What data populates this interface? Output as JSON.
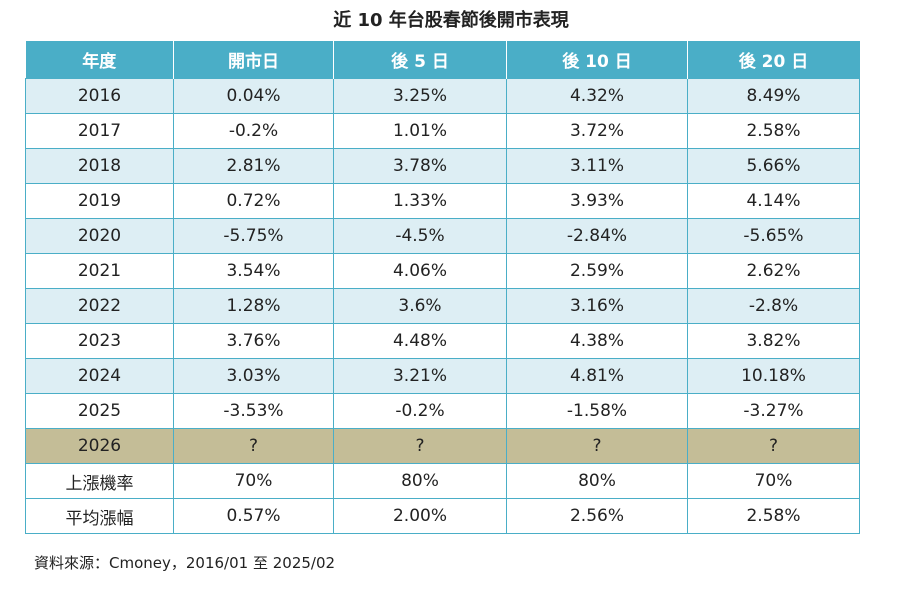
{
  "title": "近 10 年台股春節後開市表現",
  "headers": [
    "年度",
    "開市日",
    "後 5 日",
    "後 10 日",
    "後 20 日"
  ],
  "rows": [
    [
      "2016",
      "0.04%",
      "3.25%",
      "4.32%",
      "8.49%"
    ],
    [
      "2017",
      "-0.2%",
      "1.01%",
      "3.72%",
      "2.58%"
    ],
    [
      "2018",
      "2.81%",
      "3.78%",
      "3.11%",
      "5.66%"
    ],
    [
      "2019",
      "0.72%",
      "1.33%",
      "3.93%",
      "4.14%"
    ],
    [
      "2020",
      "-5.75%",
      "-4.5%",
      "-2.84%",
      "-5.65%"
    ],
    [
      "2021",
      "3.54%",
      "4.06%",
      "2.59%",
      "2.62%"
    ],
    [
      "2022",
      "1.28%",
      "3.6%",
      "3.16%",
      "-2.8%"
    ],
    [
      "2023",
      "3.76%",
      "4.48%",
      "4.38%",
      "3.82%"
    ],
    [
      "2024",
      "3.03%",
      "3.21%",
      "4.81%",
      "10.18%"
    ],
    [
      "2025",
      "-3.53%",
      "-0.2%",
      "-1.58%",
      "-3.27%"
    ],
    [
      "2026",
      "?",
      "?",
      "?",
      "?"
    ],
    [
      "上漲機率",
      "70%",
      "80%",
      "80%",
      "70%"
    ],
    [
      "平均漲幅",
      "0.57%",
      "2.00%",
      "2.56%",
      "2.58%"
    ]
  ],
  "source": "資料來源：Cmoney，2016/01 至 2025/02",
  "colors": {
    "header_bg": "#4aaec7",
    "row_shade": "#ddeef4",
    "row_white": "#ffffff",
    "highlight_row": "#c4bd97",
    "border": "#4aaec7"
  }
}
